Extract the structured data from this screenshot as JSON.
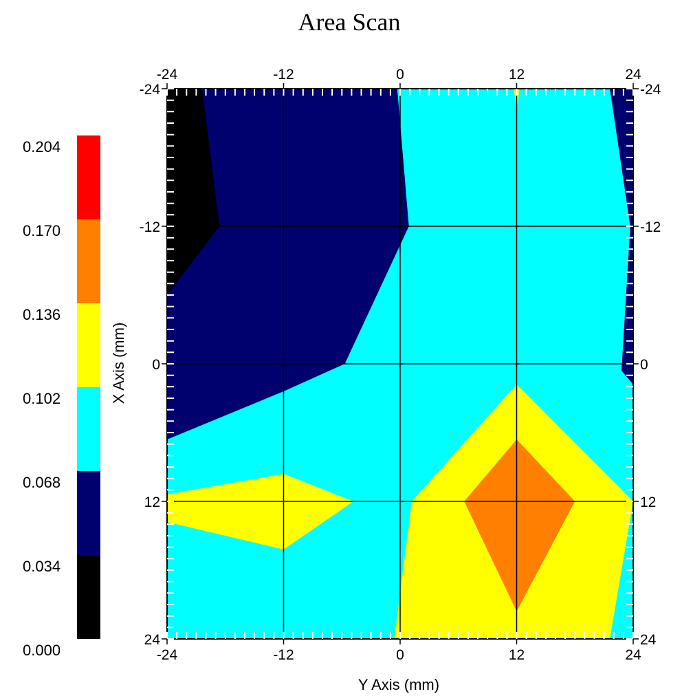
{
  "chart_data": {
    "type": "heatmap",
    "subtype": "filled-contour",
    "title": "Area Scan",
    "xlabel": "Y Axis (mm)",
    "ylabel": "X Axis (mm)",
    "x_range": [
      -24,
      24
    ],
    "y_range": [
      -24,
      24
    ],
    "y_inverted": true,
    "grid": true,
    "x_ticks": [
      -24,
      -12,
      0,
      12,
      24
    ],
    "y_ticks": [
      -24,
      -12,
      0,
      12,
      24
    ],
    "colorbar": {
      "position": "left",
      "ticks": [
        "0.000",
        "0.034",
        "0.068",
        "0.102",
        "0.136",
        "0.170",
        "0.204"
      ],
      "levels": [
        0.0,
        0.034,
        0.068,
        0.102,
        0.136,
        0.17,
        0.204
      ],
      "colors": [
        "#000000",
        "#00006e",
        "#00ffff",
        "#ffff00",
        "#ff7f00",
        "#ff0000"
      ]
    },
    "contours": {
      "background_color": "#00ffff",
      "regions": [
        {
          "band": "0.034-0.068",
          "color": "#00006e",
          "points": [
            [
              -24,
              -24
            ],
            [
              -0.3,
              -24
            ],
            [
              0.9,
              -12
            ],
            [
              -5.7,
              0
            ],
            [
              -12,
              2.4
            ],
            [
              -24,
              6.6
            ]
          ]
        },
        {
          "band": "0.000-0.034",
          "color": "#000000",
          "points": [
            [
              -24,
              -24
            ],
            [
              -20.4,
              -24
            ],
            [
              -18.6,
              -12
            ],
            [
              -24,
              -6
            ]
          ]
        },
        {
          "band": "0.034-0.068",
          "color": "#00006e",
          "points": [
            [
              21.6,
              -24
            ],
            [
              24,
              -24
            ],
            [
              24,
              1.8
            ],
            [
              22.8,
              0.6
            ],
            [
              23.7,
              -12
            ]
          ]
        },
        {
          "band": "0.102-0.136",
          "color": "#ffff00",
          "points": [
            [
              11.7,
              -24
            ],
            [
              12.3,
              -24
            ],
            [
              12,
              -22.2
            ]
          ]
        },
        {
          "band": "0.102-0.136",
          "color": "#ffff00",
          "points": [
            [
              -24,
              11.4
            ],
            [
              -12,
              9.6
            ],
            [
              -4.8,
              12
            ],
            [
              -12,
              16.2
            ],
            [
              -24,
              13.8
            ]
          ]
        },
        {
          "band": "0.102-0.136",
          "color": "#ffff00",
          "points": [
            [
              12,
              1.8
            ],
            [
              24,
              12
            ],
            [
              21.6,
              24
            ],
            [
              -0.6,
              24
            ],
            [
              1.2,
              12
            ]
          ]
        },
        {
          "band": "0.136-0.170",
          "color": "#ff7f00",
          "points": [
            [
              12,
              6.6
            ],
            [
              18,
              12
            ],
            [
              12,
              21.6
            ],
            [
              6.6,
              12
            ]
          ]
        }
      ]
    }
  }
}
